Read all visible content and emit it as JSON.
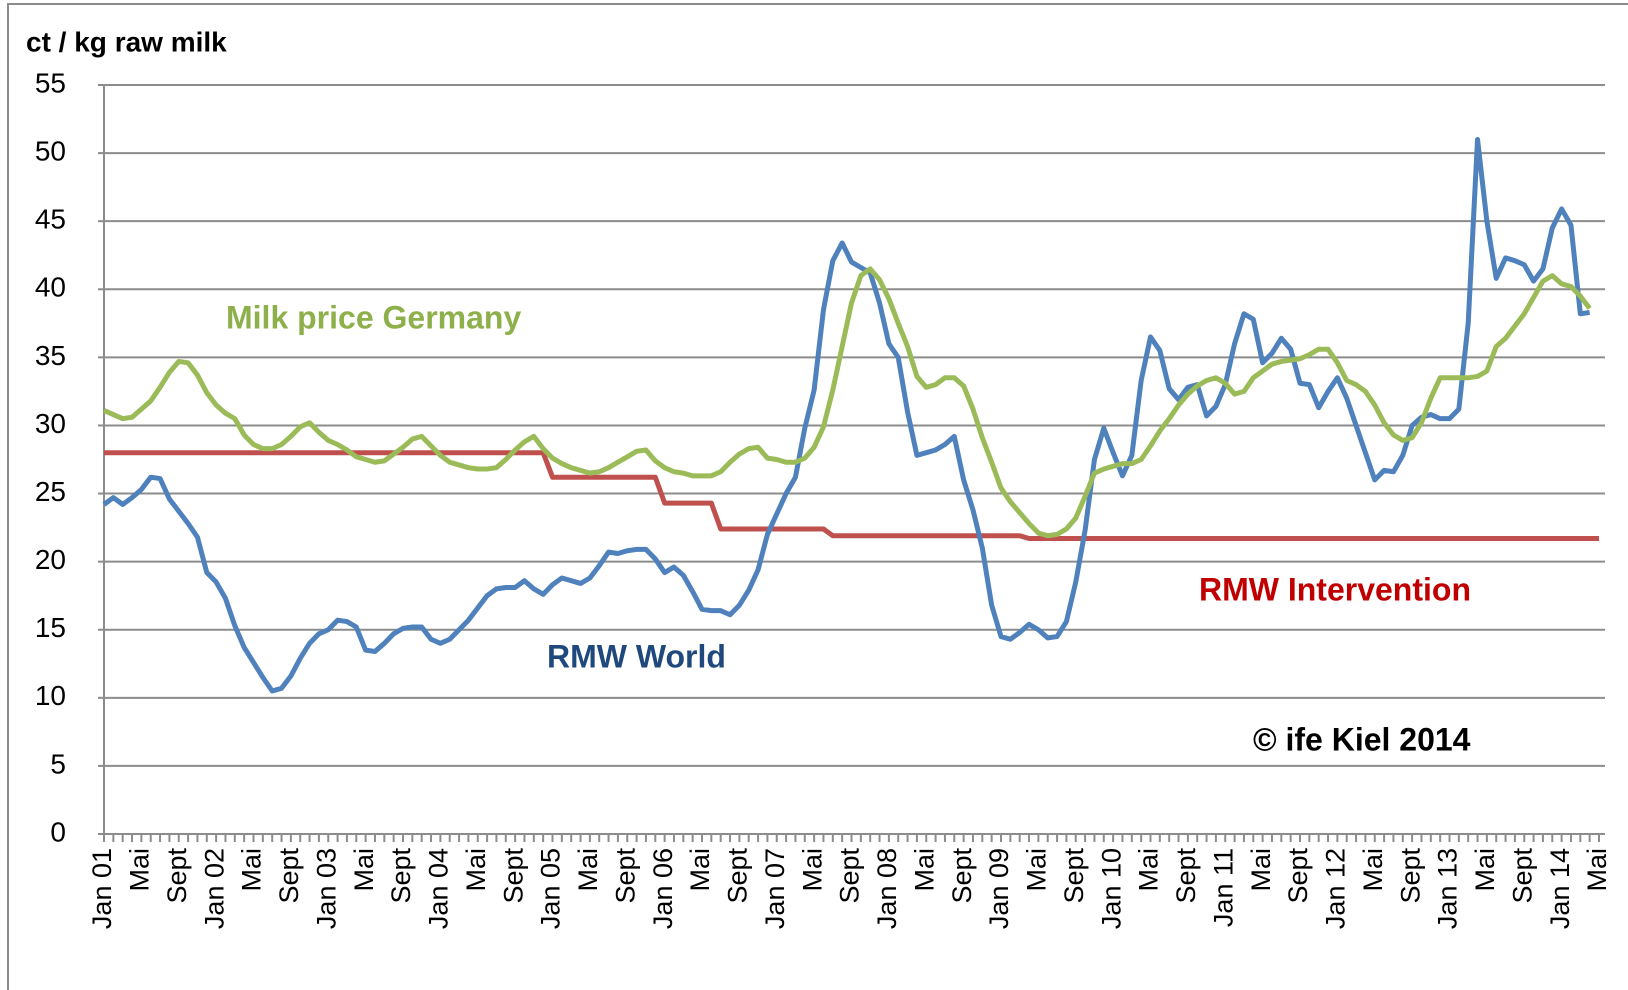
{
  "chart_data": {
    "type": "line",
    "y_label": "ct / kg raw milk",
    "annotations": [
      "© ife Kiel 2014"
    ],
    "categories": [
      "Jan 01",
      null,
      null,
      null,
      "Mai",
      null,
      null,
      null,
      "Sept",
      null,
      null,
      null,
      "Jan 02",
      null,
      null,
      null,
      "Mai",
      null,
      null,
      null,
      "Sept",
      null,
      null,
      null,
      "Jan 03",
      null,
      null,
      null,
      "Mai",
      null,
      null,
      null,
      "Sept",
      null,
      null,
      null,
      "Jan 04",
      null,
      null,
      null,
      "Mai",
      null,
      null,
      null,
      "Sept",
      null,
      null,
      null,
      "Jan 05",
      null,
      null,
      null,
      "Mai",
      null,
      null,
      null,
      "Sept",
      null,
      null,
      null,
      "Jan 06",
      null,
      null,
      null,
      "Mai",
      null,
      null,
      null,
      "Sept",
      null,
      null,
      null,
      "Jan 07",
      null,
      null,
      null,
      "Mai",
      null,
      null,
      null,
      "Sept",
      null,
      null,
      null,
      "Jan 08",
      null,
      null,
      null,
      "Mai",
      null,
      null,
      null,
      "Sept",
      null,
      null,
      null,
      "Jan 09",
      null,
      null,
      null,
      "Mai",
      null,
      null,
      null,
      "Sept",
      null,
      null,
      null,
      "Jan 10",
      null,
      null,
      null,
      "Mai",
      null,
      null,
      null,
      "Sept",
      null,
      null,
      null,
      "Jan 11",
      null,
      null,
      null,
      "Mai",
      null,
      null,
      null,
      "Sept",
      null,
      null,
      null,
      "Jan 12",
      null,
      null,
      null,
      "Mai",
      null,
      null,
      null,
      "Sept",
      null,
      null,
      null,
      "Jan 13",
      null,
      null,
      null,
      "Mai",
      null,
      null,
      null,
      "Sept",
      null,
      null,
      null,
      "Jan 14",
      null,
      null,
      null,
      "Mai"
    ],
    "series": [
      {
        "name": "RMW Intervention",
        "color": "#c0504d",
        "values": [
          28,
          28,
          28,
          28,
          28,
          28,
          28,
          28,
          28,
          28,
          28,
          28,
          28,
          28,
          28,
          28,
          28,
          28,
          28,
          28,
          28,
          28,
          28,
          28,
          28,
          28,
          28,
          28,
          28,
          28,
          28,
          28,
          28,
          28,
          28,
          28,
          28,
          28,
          28,
          28,
          28,
          28,
          28,
          28,
          28,
          28,
          28,
          28,
          26.2,
          26.2,
          26.2,
          26.2,
          26.2,
          26.2,
          26.2,
          26.2,
          26.2,
          26.2,
          26.2,
          26.2,
          24.3,
          24.3,
          24.3,
          24.3,
          24.3,
          24.3,
          22.4,
          22.4,
          22.4,
          22.4,
          22.4,
          22.4,
          22.4,
          22.4,
          22.4,
          22.4,
          22.4,
          22.4,
          21.9,
          21.9,
          21.9,
          21.9,
          21.9,
          21.9,
          21.9,
          21.9,
          21.9,
          21.9,
          21.9,
          21.9,
          21.9,
          21.9,
          21.9,
          21.9,
          21.9,
          21.9,
          21.9,
          21.9,
          21.9,
          21.7,
          21.7,
          21.7,
          21.7,
          21.7,
          21.7,
          21.7,
          21.7,
          21.7,
          21.7,
          21.7,
          21.7,
          21.7,
          21.7,
          21.7,
          21.7,
          21.7,
          21.7,
          21.7,
          21.7,
          21.7,
          21.7,
          21.7,
          21.7,
          21.7,
          21.7,
          21.7,
          21.7,
          21.7,
          21.7,
          21.7,
          21.7,
          21.7,
          21.7,
          21.7,
          21.7,
          21.7,
          21.7,
          21.7,
          21.7,
          21.7,
          21.7,
          21.7,
          21.7,
          21.7,
          21.7,
          21.7,
          21.7,
          21.7,
          21.7,
          21.7,
          21.7,
          21.7,
          21.7,
          21.7,
          21.7,
          21.7,
          21.7,
          21.7,
          21.7,
          21.7,
          21.7
        ]
      },
      {
        "name": "RMW World",
        "color": "#4f81bd",
        "values": [
          24.2,
          24.7,
          24.2,
          24.7,
          25.3,
          26.2,
          26.1,
          24.6,
          23.7,
          22.8,
          21.8,
          19.2,
          18.5,
          17.3,
          15.3,
          13.7,
          12.6,
          11.5,
          10.5,
          10.7,
          11.6,
          12.9,
          14.0,
          14.7,
          15.0,
          15.7,
          15.6,
          15.2,
          13.5,
          13.4,
          14.0,
          14.7,
          15.1,
          15.2,
          15.2,
          14.3,
          14.0,
          14.3,
          15.0,
          15.7,
          16.6,
          17.5,
          18.0,
          18.1,
          18.1,
          18.6,
          18.0,
          17.6,
          18.3,
          18.8,
          18.6,
          18.4,
          18.8,
          19.7,
          20.7,
          20.6,
          20.8,
          20.9,
          20.9,
          20.2,
          19.2,
          19.6,
          19.0,
          17.8,
          16.5,
          16.4,
          16.4,
          16.1,
          16.8,
          17.9,
          19.4,
          22.0,
          23.5,
          25.0,
          26.2,
          29.8,
          32.6,
          38.5,
          42.1,
          43.4,
          42.0,
          41.6,
          41.2,
          39.0,
          36.0,
          35.0,
          31.0,
          27.8,
          28.0,
          28.2,
          28.6,
          29.2,
          26.0,
          23.8,
          21.0,
          16.8,
          14.5,
          14.3,
          14.8,
          15.4,
          15.0,
          14.4,
          14.5,
          15.6,
          18.5,
          22.3,
          27.5,
          29.8,
          28.0,
          26.3,
          27.8,
          33.3,
          36.5,
          35.5,
          32.7,
          31.9,
          32.8,
          33.0,
          30.7,
          31.4,
          33.0,
          36.0,
          38.2,
          37.8,
          34.6,
          35.3,
          36.4,
          35.6,
          33.1,
          33.0,
          31.3,
          32.5,
          33.5,
          32.0,
          30.0,
          28.0,
          26.0,
          26.7,
          26.6,
          27.8,
          30.0,
          30.6,
          30.8,
          30.5,
          30.5,
          31.2,
          37.5,
          51.0,
          45.0,
          40.8,
          42.3,
          42.1,
          41.8,
          40.6,
          41.5,
          44.5,
          45.9,
          44.7,
          38.2,
          38.3,
          null
        ]
      },
      {
        "name": "Milk price Germany",
        "color": "#9bbb59",
        "values": [
          31.1,
          30.8,
          30.5,
          30.6,
          31.2,
          31.8,
          32.8,
          33.9,
          34.7,
          34.6,
          33.7,
          32.4,
          31.5,
          30.9,
          30.5,
          29.3,
          28.6,
          28.3,
          28.3,
          28.6,
          29.2,
          29.9,
          30.2,
          29.5,
          28.9,
          28.6,
          28.2,
          27.7,
          27.5,
          27.3,
          27.4,
          27.9,
          28.4,
          29.0,
          29.2,
          28.5,
          27.8,
          27.3,
          27.1,
          26.9,
          26.8,
          26.8,
          26.9,
          27.5,
          28.2,
          28.8,
          29.2,
          28.3,
          27.6,
          27.2,
          26.9,
          26.7,
          26.5,
          26.6,
          26.9,
          27.3,
          27.7,
          28.1,
          28.2,
          27.4,
          26.9,
          26.6,
          26.5,
          26.3,
          26.3,
          26.3,
          26.6,
          27.3,
          27.9,
          28.3,
          28.4,
          27.6,
          27.5,
          27.3,
          27.3,
          27.6,
          28.4,
          29.9,
          32.6,
          35.8,
          39.0,
          41.0,
          41.5,
          40.7,
          39.3,
          37.5,
          35.8,
          33.6,
          32.8,
          33.0,
          33.5,
          33.5,
          32.9,
          31.2,
          29.1,
          27.3,
          25.4,
          24.4,
          23.6,
          22.8,
          22.1,
          21.9,
          22.0,
          22.4,
          23.2,
          24.8,
          26.5,
          26.8,
          27.0,
          27.2,
          27.2,
          27.5,
          28.5,
          29.6,
          30.5,
          31.5,
          32.3,
          32.9,
          33.3,
          33.5,
          33.1,
          32.3,
          32.5,
          33.5,
          34.0,
          34.5,
          34.7,
          34.8,
          34.9,
          35.2,
          35.6,
          35.6,
          34.6,
          33.3,
          33.0,
          32.5,
          31.5,
          30.2,
          29.3,
          28.9,
          29.1,
          30.2,
          32.0,
          33.5,
          33.5,
          33.5,
          33.5,
          33.6,
          34.0,
          35.8,
          36.4,
          37.3,
          38.2,
          39.4,
          40.6,
          41.0,
          40.4,
          40.2,
          39.5,
          38.6,
          null
        ]
      }
    ],
    "ylim": [
      0,
      55
    ],
    "yticks": [
      0,
      5,
      10,
      15,
      20,
      25,
      30,
      35,
      40,
      45,
      50,
      55
    ],
    "grid": true
  }
}
